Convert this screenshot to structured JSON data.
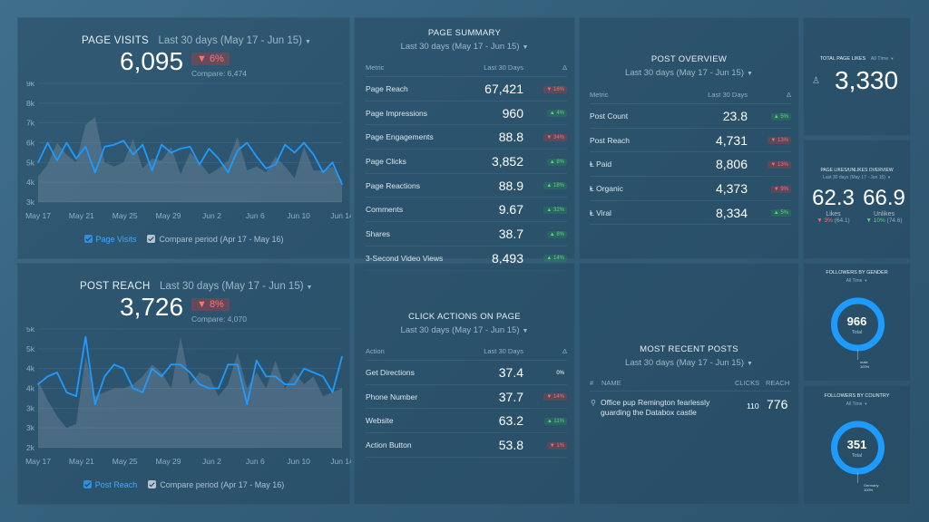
{
  "colors": {
    "accent": "#1e9bff",
    "compare": "#8aa0b0",
    "donut": "#1e9bff",
    "down": "#ff6b6b",
    "up": "#5fd08a"
  },
  "page_visits": {
    "title": "PAGE VISITS",
    "period": "Last 30 days (May 17 - Jun 15)",
    "value": "6,095",
    "change": "▼ 6%",
    "compare": "Compare: 6,474",
    "legend_current": "Page Visits",
    "legend_compare": "Compare period (Apr 17 - May 16)"
  },
  "post_reach": {
    "title": "POST REACH",
    "period": "Last 30 days (May 17 - Jun 15)",
    "value": "3,726",
    "change": "▼ 8%",
    "compare": "Compare: 4,070",
    "legend_current": "Post Reach",
    "legend_compare": "Compare period (Apr 17 - May 16)"
  },
  "page_summary": {
    "title": "PAGE SUMMARY",
    "period": "Last 30 days (May 17 - Jun 15)",
    "headers": {
      "metric": "Metric",
      "value": "Last 30 Days",
      "delta": "Δ"
    },
    "rows": [
      {
        "label": "Page Reach",
        "value": "67,421",
        "delta": "▼ 16%",
        "dir": "down"
      },
      {
        "label": "Page Impressions",
        "value": "960",
        "delta": "▲ 4%",
        "dir": "up"
      },
      {
        "label": "Page Engagements",
        "value": "88.8",
        "delta": "▼ 34%",
        "dir": "down"
      },
      {
        "label": "Page Clicks",
        "value": "3,852",
        "delta": "▲ 8%",
        "dir": "up"
      },
      {
        "label": "Page Reactions",
        "value": "88.9",
        "delta": "▲ 18%",
        "dir": "up"
      },
      {
        "label": "Comments",
        "value": "9.67",
        "delta": "▲ 32%",
        "dir": "up"
      },
      {
        "label": "Shares",
        "value": "38.7",
        "delta": "▲ 8%",
        "dir": "up"
      },
      {
        "label": "3-Second Video Views",
        "value": "8,493",
        "delta": "▲ 14%",
        "dir": "up"
      }
    ]
  },
  "post_overview": {
    "title": "POST OVERVIEW",
    "period": "Last 30 days (May 17 - Jun 15)",
    "headers": {
      "metric": "Metric",
      "value": "Last 30 Days",
      "delta": "Δ"
    },
    "rows": [
      {
        "label": "Post Count",
        "value": "23.8",
        "delta": "▲ 5%",
        "dir": "up"
      },
      {
        "label": "Post Reach",
        "value": "4,731",
        "delta": "▼ 13%",
        "dir": "down"
      },
      {
        "label": "Ⱡ Paid",
        "value": "8,806",
        "delta": "▼ 13%",
        "dir": "down"
      },
      {
        "label": "Ⱡ Organic",
        "value": "4,373",
        "delta": "▼ 9%",
        "dir": "down"
      },
      {
        "label": "Ⱡ Viral",
        "value": "8,334",
        "delta": "▲ 5%",
        "dir": "up"
      }
    ]
  },
  "click_actions": {
    "title": "CLICK ACTIONS ON PAGE",
    "period": "Last 30 days (May 17 - Jun 15)",
    "headers": {
      "metric": "Action",
      "value": "Last 30 Days",
      "delta": "Δ"
    },
    "rows": [
      {
        "label": "Get Directions",
        "value": "37.4",
        "delta": "0%",
        "dir": "zero"
      },
      {
        "label": "Phone Number",
        "value": "37.7",
        "delta": "▼ 14%",
        "dir": "down"
      },
      {
        "label": "Website",
        "value": "63.2",
        "delta": "▲ 11%",
        "dir": "up"
      },
      {
        "label": "Action Button",
        "value": "53.8",
        "delta": "▼ 1%",
        "dir": "down"
      }
    ]
  },
  "recent_posts": {
    "title": "MOST RECENT POSTS",
    "period": "Last 30 days (May 17 - Jun 15)",
    "headers": {
      "num": "#",
      "name": "NAME",
      "clicks": "CLICKS",
      "reach": "REACH"
    },
    "rows": [
      {
        "name": "Office pup Remington fearlessly guarding the Databox castle",
        "clicks": "110",
        "reach": "776"
      }
    ]
  },
  "total_likes": {
    "title": "TOTAL PAGE LIKES",
    "period": "All Time",
    "value": "3,330"
  },
  "likes_unlikes": {
    "title": "PAGE LIKES/UNLIKES OVERVIEW",
    "period": "Last 30 days (May 17 - Jun 15)",
    "likes_value": "62.3",
    "likes_label": "Likes",
    "likes_change": "▼ 3%",
    "likes_compare": "(64.1)",
    "unlikes_value": "66.9",
    "unlikes_label": "Unlikes",
    "unlikes_change": "▼ 10%",
    "unlikes_compare": "(74.6)"
  },
  "followers_gender": {
    "title": "FOLLOWERS BY GENDER",
    "period": "All Time",
    "value": "966",
    "label": "Total",
    "seg_name": "male",
    "seg_pct": "100%"
  },
  "followers_country": {
    "title": "FOLLOWERS BY COUNTRY",
    "period": "All Time",
    "value": "351",
    "label": "Total",
    "seg_name": "Germany",
    "seg_pct": "100%"
  },
  "charts": {
    "page_visits": {
      "type": "area",
      "x_labels": [
        "May 17",
        "May 21",
        "May 25",
        "May 29",
        "Jun 2",
        "Jun 6",
        "Jun 10",
        "Jun 14"
      ],
      "y_labels": [
        "9k",
        "8k",
        "7k",
        "6k",
        "5k",
        "4k",
        "3k"
      ],
      "ylim": [
        3000,
        9000
      ],
      "series": [
        {
          "name": "Page Visits",
          "values": [
            5000,
            6000,
            5100,
            6000,
            5200,
            5800,
            4500,
            5800,
            5900,
            6100,
            5400,
            5900,
            4600,
            5900,
            5500,
            5700,
            5800,
            4900,
            5700,
            5200,
            4500,
            5600,
            6000,
            5300,
            4700,
            4900,
            5900,
            5500,
            6000,
            5400,
            4500,
            5000,
            3900
          ]
        },
        {
          "name": "Compare period (Apr 17 - May 16)",
          "values": [
            4300,
            4900,
            6000,
            5400,
            5000,
            6900,
            7300,
            5000,
            4800,
            5000,
            6200,
            4700,
            5200,
            5100,
            5800,
            4400,
            5500,
            5000,
            4400,
            4700,
            5100,
            6300,
            4600,
            4800,
            4500,
            5300,
            4800,
            4200,
            5800,
            4600,
            4600,
            4800,
            4100
          ]
        }
      ]
    },
    "post_reach": {
      "type": "area",
      "x_labels": [
        "May 17",
        "May 21",
        "May 25",
        "May 29",
        "Jun 2",
        "Jun 6",
        "Jun 10",
        "Jun 14"
      ],
      "y_labels": [
        "5k",
        "5k",
        "4k",
        "4k",
        "3k",
        "3k",
        "2k"
      ],
      "ylim": [
        2000,
        5000
      ],
      "series": [
        {
          "name": "Post Reach",
          "values": [
            3600,
            3800,
            3900,
            3400,
            3300,
            4800,
            3100,
            3800,
            4100,
            4000,
            3500,
            3400,
            4000,
            3800,
            4100,
            4100,
            3900,
            3600,
            3500,
            3500,
            4100,
            4100,
            3100,
            4200,
            3800,
            3800,
            3600,
            3600,
            4000,
            3900,
            3800,
            3400,
            4300
          ]
        },
        {
          "name": "Compare period (Apr 17 - May 16)",
          "values": [
            3700,
            3200,
            2800,
            2500,
            2600,
            4300,
            3300,
            3400,
            3500,
            3500,
            3600,
            3800,
            4100,
            3900,
            3500,
            4800,
            3600,
            3900,
            3800,
            3300,
            3600,
            4400,
            3500,
            3900,
            3500,
            4200,
            3500,
            3900,
            3600,
            3800,
            3300,
            3400,
            3500
          ]
        }
      ]
    }
  }
}
